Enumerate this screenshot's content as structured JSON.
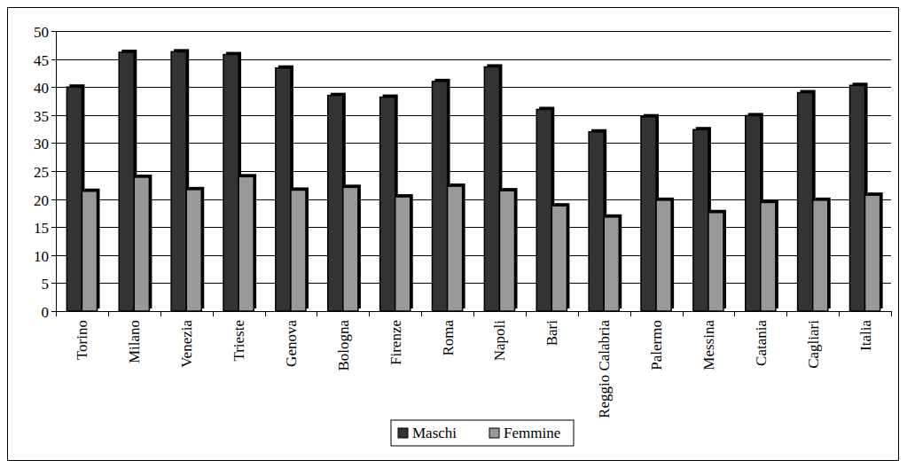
{
  "chart_data": {
    "type": "bar",
    "categories": [
      "Torino",
      "Milano",
      "Venezia",
      "Trieste",
      "Genova",
      "Bologna",
      "Firenze",
      "Roma",
      "Napoli",
      "Bari",
      "Reggio Calabria",
      "Palermo",
      "Messina",
      "Catania",
      "Cagliari",
      "Italia"
    ],
    "series": [
      {
        "name": "Maschi",
        "color": "#333333",
        "values": [
          40,
          46.2,
          46.3,
          45.8,
          43.4,
          38.5,
          38.2,
          41,
          43.6,
          36,
          32,
          34.7,
          32.4,
          34.9,
          39,
          40.3
        ]
      },
      {
        "name": "Femmine",
        "color": "#999999",
        "values": [
          21.4,
          23.9,
          21.7,
          24,
          21.6,
          22.1,
          20.4,
          22.3,
          21.5,
          18.8,
          16.8,
          19.8,
          17.6,
          19.4,
          19.8,
          20.7
        ]
      }
    ],
    "ylim": [
      0,
      50
    ],
    "yticks": [
      0,
      5,
      10,
      15,
      20,
      25,
      30,
      35,
      40,
      45,
      50
    ],
    "grid": true,
    "legend": "bottom"
  }
}
